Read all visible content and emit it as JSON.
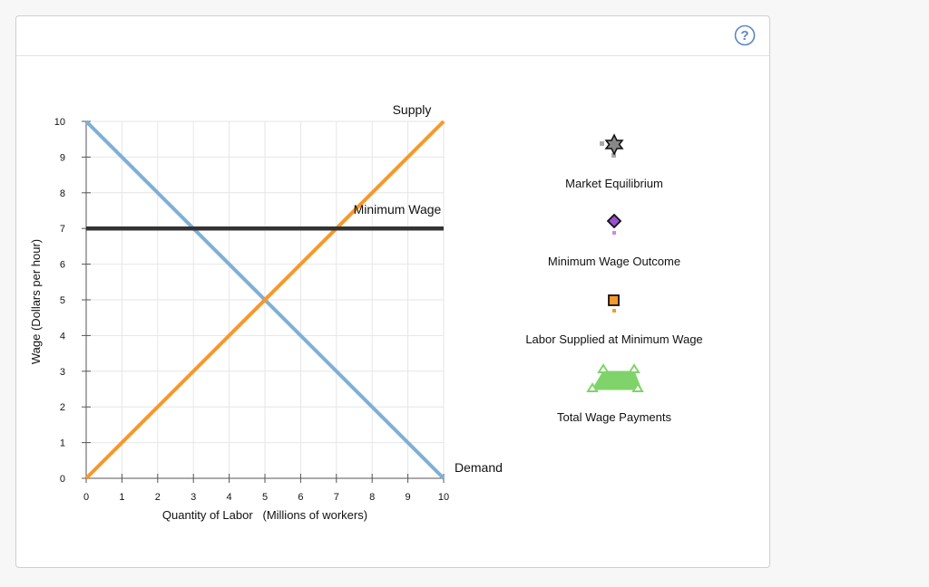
{
  "help": {
    "glyph": "?",
    "color": "#5b86c6"
  },
  "chart_data": {
    "type": "line",
    "xlabel": "Quantity of Labor   (Millions of workers)",
    "ylabel": "Wage (Dollars per hour)",
    "xlim": [
      0,
      10
    ],
    "ylim": [
      0,
      10
    ],
    "xticks": [
      0,
      1,
      2,
      3,
      4,
      5,
      6,
      7,
      8,
      9,
      10
    ],
    "yticks": [
      0,
      1,
      2,
      3,
      4,
      5,
      6,
      7,
      8,
      9,
      10
    ],
    "grid": true,
    "series": [
      {
        "name": "Demand",
        "color": "#7fb0d6",
        "x": [
          0,
          10
        ],
        "y": [
          10,
          0
        ]
      },
      {
        "name": "Supply",
        "color": "#f7982b",
        "x": [
          0,
          10
        ],
        "y": [
          0,
          10
        ]
      },
      {
        "name": "Minimum Wage",
        "color": "#333333",
        "x": [
          0,
          10
        ],
        "y": [
          7,
          7
        ]
      }
    ]
  },
  "legend": {
    "items": [
      {
        "label": "Market Equilibrium",
        "icon": "star-marker",
        "color": "#888888"
      },
      {
        "label": "Minimum Wage Outcome",
        "icon": "diamond-marker",
        "color": "#9a4fd0"
      },
      {
        "label": "Labor Supplied at Minimum Wage",
        "icon": "square-marker",
        "color": "#f7982b"
      },
      {
        "label": "Total Wage Payments",
        "icon": "polygon-tool",
        "color": "#7fd36a"
      }
    ]
  }
}
